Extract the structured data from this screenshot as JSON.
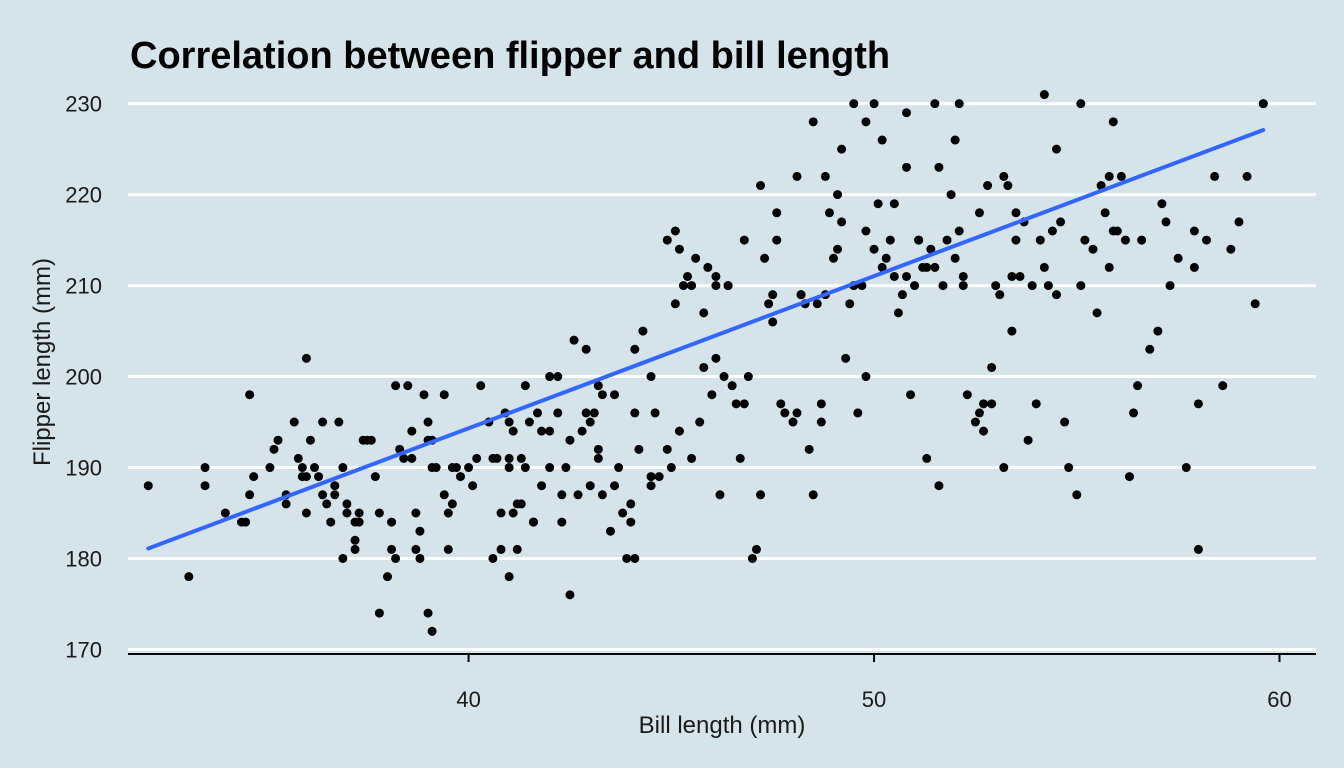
{
  "colors": {
    "background": "#d5e4eb",
    "grid": "#ffffff",
    "points": "#000000",
    "fit_line": "#3366ff",
    "axis": "#000000"
  },
  "chart_data": {
    "type": "scatter",
    "title": "Correlation between flipper and bill length",
    "xlabel": "Bill length (mm)",
    "ylabel": "Flipper length (mm)",
    "xlim": [
      31.6,
      60.9
    ],
    "ylim": [
      169.5,
      231.5
    ],
    "x_ticks": [
      40,
      50,
      60
    ],
    "y_ticks": [
      170,
      180,
      190,
      200,
      210,
      220,
      230
    ],
    "grid": "horizontal major lines",
    "legend": "none",
    "trend_line": {
      "type": "linear",
      "x": [
        32.1,
        59.6
      ],
      "y": [
        181.1,
        227.1
      ]
    },
    "points": [
      [
        32.1,
        188
      ],
      [
        33.1,
        178
      ],
      [
        33.5,
        190
      ],
      [
        34.0,
        185
      ],
      [
        34.5,
        184
      ],
      [
        34.6,
        187
      ],
      [
        34.6,
        198
      ],
      [
        34.7,
        189
      ],
      [
        35.1,
        190
      ],
      [
        35.2,
        192
      ],
      [
        35.3,
        193
      ],
      [
        35.5,
        187
      ],
      [
        35.5,
        186
      ],
      [
        35.7,
        195
      ],
      [
        35.8,
        191
      ],
      [
        35.9,
        190
      ],
      [
        36.0,
        202
      ],
      [
        36.0,
        189
      ],
      [
        36.0,
        185
      ],
      [
        36.2,
        190
      ],
      [
        36.3,
        189
      ],
      [
        36.4,
        195
      ],
      [
        36.4,
        187
      ],
      [
        36.5,
        186
      ],
      [
        36.6,
        184
      ],
      [
        36.7,
        188
      ],
      [
        36.7,
        187
      ],
      [
        36.8,
        195
      ],
      [
        36.9,
        190
      ],
      [
        37.0,
        186
      ],
      [
        37.0,
        185
      ],
      [
        37.2,
        184
      ],
      [
        37.2,
        182
      ],
      [
        37.2,
        181
      ],
      [
        37.3,
        184
      ],
      [
        37.3,
        185
      ],
      [
        37.4,
        193
      ],
      [
        37.5,
        193
      ],
      [
        37.6,
        193
      ],
      [
        37.7,
        189
      ],
      [
        37.8,
        185
      ],
      [
        38.0,
        178
      ],
      [
        38.1,
        184
      ],
      [
        38.2,
        199
      ],
      [
        38.3,
        192
      ],
      [
        38.4,
        191
      ],
      [
        38.5,
        199
      ],
      [
        38.6,
        191
      ],
      [
        38.6,
        194
      ],
      [
        38.7,
        185
      ],
      [
        38.7,
        181
      ],
      [
        38.8,
        180
      ],
      [
        38.8,
        183
      ],
      [
        38.9,
        198
      ],
      [
        39.0,
        193
      ],
      [
        39.0,
        174
      ],
      [
        39.1,
        193
      ],
      [
        39.1,
        172
      ],
      [
        39.1,
        190
      ],
      [
        39.2,
        190
      ],
      [
        39.4,
        198
      ],
      [
        39.4,
        187
      ],
      [
        39.5,
        185
      ],
      [
        39.5,
        181
      ],
      [
        39.6,
        190
      ],
      [
        39.7,
        190
      ],
      [
        39.8,
        189
      ],
      [
        40.0,
        190
      ],
      [
        40.2,
        191
      ],
      [
        40.3,
        199
      ],
      [
        40.5,
        195
      ],
      [
        40.6,
        191
      ],
      [
        40.6,
        180
      ],
      [
        40.7,
        191
      ],
      [
        40.8,
        181
      ],
      [
        40.9,
        196
      ],
      [
        41.0,
        190
      ],
      [
        41.0,
        178
      ],
      [
        41.0,
        191
      ],
      [
        41.1,
        185
      ],
      [
        41.2,
        186
      ],
      [
        41.2,
        181
      ],
      [
        41.3,
        191
      ],
      [
        41.3,
        186
      ],
      [
        41.4,
        190
      ],
      [
        41.5,
        195
      ],
      [
        41.6,
        184
      ],
      [
        41.6,
        184
      ],
      [
        41.7,
        196
      ],
      [
        41.8,
        188
      ],
      [
        42.0,
        200
      ],
      [
        42.0,
        190
      ],
      [
        42.2,
        196
      ],
      [
        42.3,
        187
      ],
      [
        42.3,
        184
      ],
      [
        42.5,
        176
      ],
      [
        42.5,
        193
      ],
      [
        42.7,
        187
      ],
      [
        42.8,
        194
      ],
      [
        43.0,
        188
      ],
      [
        43.0,
        195
      ],
      [
        43.1,
        196
      ],
      [
        43.2,
        192
      ],
      [
        43.2,
        191
      ],
      [
        43.3,
        187
      ],
      [
        43.5,
        183
      ],
      [
        43.6,
        188
      ],
      [
        43.7,
        190
      ],
      [
        43.8,
        185
      ],
      [
        43.9,
        180
      ],
      [
        44.0,
        184
      ],
      [
        44.1,
        180
      ],
      [
        44.1,
        203
      ],
      [
        44.2,
        192
      ],
      [
        44.3,
        205
      ],
      [
        44.5,
        188
      ],
      [
        44.6,
        196
      ],
      [
        44.7,
        189
      ],
      [
        44.9,
        192
      ],
      [
        45.0,
        190
      ],
      [
        45.1,
        208
      ],
      [
        45.2,
        214
      ],
      [
        45.3,
        210
      ],
      [
        45.4,
        211
      ],
      [
        45.5,
        191
      ],
      [
        45.6,
        213
      ],
      [
        45.7,
        195
      ],
      [
        45.8,
        201
      ],
      [
        46.0,
        198
      ],
      [
        46.1,
        202
      ],
      [
        46.1,
        210
      ],
      [
        46.2,
        187
      ],
      [
        46.4,
        210
      ],
      [
        46.5,
        199
      ],
      [
        46.6,
        197
      ],
      [
        46.7,
        191
      ],
      [
        46.9,
        200
      ],
      [
        47.0,
        180
      ],
      [
        47.1,
        181
      ],
      [
        47.2,
        187
      ],
      [
        47.3,
        213
      ],
      [
        47.4,
        208
      ],
      [
        47.5,
        209
      ],
      [
        47.6,
        215
      ],
      [
        47.7,
        197
      ],
      [
        47.8,
        196
      ],
      [
        48.0,
        195
      ],
      [
        48.1,
        196
      ],
      [
        48.2,
        209
      ],
      [
        48.3,
        208
      ],
      [
        48.4,
        192
      ],
      [
        48.5,
        187
      ],
      [
        48.6,
        208
      ],
      [
        48.7,
        197
      ],
      [
        48.8,
        209
      ],
      [
        48.9,
        218
      ],
      [
        49.0,
        213
      ],
      [
        49.1,
        220
      ],
      [
        49.2,
        217
      ],
      [
        49.3,
        202
      ],
      [
        49.4,
        208
      ],
      [
        49.5,
        210
      ],
      [
        49.6,
        196
      ],
      [
        49.7,
        210
      ],
      [
        49.8,
        200
      ],
      [
        50.0,
        214
      ],
      [
        50.1,
        219
      ],
      [
        50.2,
        212
      ],
      [
        50.3,
        213
      ],
      [
        50.4,
        215
      ],
      [
        50.5,
        211
      ],
      [
        50.6,
        207
      ],
      [
        50.7,
        209
      ],
      [
        50.8,
        211
      ],
      [
        50.9,
        198
      ],
      [
        51.0,
        210
      ],
      [
        51.1,
        215
      ],
      [
        51.2,
        212
      ],
      [
        51.3,
        191
      ],
      [
        51.4,
        214
      ],
      [
        51.5,
        212
      ],
      [
        51.6,
        188
      ],
      [
        51.7,
        210
      ],
      [
        51.8,
        215
      ],
      [
        51.9,
        220
      ],
      [
        52.0,
        213
      ],
      [
        52.1,
        216
      ],
      [
        52.2,
        210
      ],
      [
        52.3,
        198
      ],
      [
        52.5,
        195
      ],
      [
        52.6,
        196
      ],
      [
        52.7,
        194
      ],
      [
        52.8,
        221
      ],
      [
        52.9,
        197
      ],
      [
        53.0,
        210
      ],
      [
        53.1,
        209
      ],
      [
        53.2,
        190
      ],
      [
        53.3,
        221
      ],
      [
        53.4,
        211
      ],
      [
        53.5,
        215
      ],
      [
        53.6,
        211
      ],
      [
        53.7,
        217
      ],
      [
        53.8,
        193
      ],
      [
        53.9,
        210
      ],
      [
        54.0,
        197
      ],
      [
        54.1,
        215
      ],
      [
        54.2,
        212
      ],
      [
        54.3,
        210
      ],
      [
        54.4,
        216
      ],
      [
        54.5,
        209
      ],
      [
        54.6,
        217
      ],
      [
        54.7,
        195
      ],
      [
        54.8,
        190
      ],
      [
        55.0,
        187
      ],
      [
        55.1,
        210
      ],
      [
        55.2,
        215
      ],
      [
        55.4,
        214
      ],
      [
        55.5,
        207
      ],
      [
        55.6,
        221
      ],
      [
        55.7,
        218
      ],
      [
        55.8,
        222
      ],
      [
        55.9,
        216
      ],
      [
        56.0,
        216
      ],
      [
        56.2,
        215
      ],
      [
        56.3,
        189
      ],
      [
        56.4,
        196
      ],
      [
        56.5,
        199
      ],
      [
        56.6,
        215
      ],
      [
        56.8,
        203
      ],
      [
        57.0,
        205
      ],
      [
        57.1,
        219
      ],
      [
        57.2,
        217
      ],
      [
        57.3,
        210
      ],
      [
        57.5,
        213
      ],
      [
        57.7,
        190
      ],
      [
        57.9,
        216
      ],
      [
        58.0,
        197
      ],
      [
        58.2,
        215
      ],
      [
        58.4,
        222
      ],
      [
        58.6,
        199
      ],
      [
        58.8,
        214
      ],
      [
        59.0,
        217
      ],
      [
        59.2,
        222
      ],
      [
        59.4,
        208
      ],
      [
        59.6,
        230
      ],
      [
        33.5,
        188
      ],
      [
        34.4,
        184
      ],
      [
        35.9,
        189
      ],
      [
        36.1,
        193
      ],
      [
        36.9,
        180
      ],
      [
        37.8,
        174
      ],
      [
        38.1,
        181
      ],
      [
        38.2,
        180
      ],
      [
        39.0,
        195
      ],
      [
        39.6,
        186
      ],
      [
        40.1,
        188
      ],
      [
        40.8,
        185
      ],
      [
        41.1,
        194
      ],
      [
        42.0,
        194
      ],
      [
        42.4,
        190
      ],
      [
        42.9,
        196
      ],
      [
        43.3,
        198
      ],
      [
        44.0,
        186
      ],
      [
        44.5,
        189
      ],
      [
        45.2,
        194
      ],
      [
        45.8,
        207
      ],
      [
        46.3,
        200
      ],
      [
        46.8,
        197
      ],
      [
        47.5,
        206
      ],
      [
        48.2,
        209
      ],
      [
        48.7,
        195
      ],
      [
        49.1,
        214
      ],
      [
        49.8,
        216
      ],
      [
        50.2,
        226
      ],
      [
        50.5,
        219
      ],
      [
        50.8,
        223
      ],
      [
        51.1,
        215
      ],
      [
        51.3,
        212
      ],
      [
        51.6,
        223
      ],
      [
        52.0,
        226
      ],
      [
        52.2,
        211
      ],
      [
        52.6,
        218
      ],
      [
        52.9,
        201
      ],
      [
        53.2,
        222
      ],
      [
        53.5,
        218
      ],
      [
        54.2,
        231
      ],
      [
        55.1,
        230
      ],
      [
        55.9,
        228
      ],
      [
        58.0,
        181
      ],
      [
        59.6,
        230
      ],
      [
        57.9,
        212
      ],
      [
        56.1,
        222
      ],
      [
        55.8,
        212
      ],
      [
        54.5,
        225
      ],
      [
        53.4,
        205
      ],
      [
        52.7,
        197
      ],
      [
        52.1,
        230
      ],
      [
        51.5,
        230
      ],
      [
        50.8,
        229
      ],
      [
        50.0,
        230
      ],
      [
        49.8,
        228
      ],
      [
        49.5,
        230
      ],
      [
        49.2,
        225
      ],
      [
        48.8,
        222
      ],
      [
        48.5,
        228
      ],
      [
        48.1,
        222
      ],
      [
        47.6,
        218
      ],
      [
        47.2,
        221
      ],
      [
        46.8,
        215
      ],
      [
        46.4,
        210
      ],
      [
        46.1,
        211
      ],
      [
        45.9,
        212
      ],
      [
        45.5,
        210
      ],
      [
        45.1,
        216
      ],
      [
        44.9,
        215
      ],
      [
        44.5,
        200
      ],
      [
        44.1,
        196
      ],
      [
        43.6,
        198
      ],
      [
        43.2,
        199
      ],
      [
        42.9,
        203
      ],
      [
        42.6,
        204
      ],
      [
        42.2,
        200
      ],
      [
        41.8,
        194
      ],
      [
        41.4,
        199
      ],
      [
        41.0,
        195
      ]
    ]
  }
}
